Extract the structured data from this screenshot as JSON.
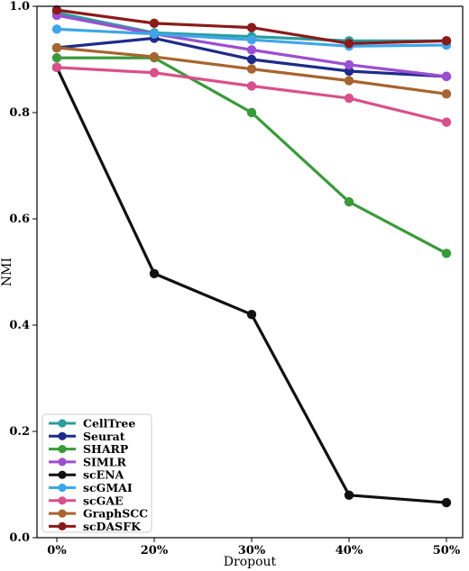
{
  "chart_data": {
    "type": "line",
    "title": "",
    "xlabel": "Dropout",
    "ylabel": "NMI",
    "categories": [
      "0%",
      "20%",
      "30%",
      "40%",
      "50%"
    ],
    "ylim": [
      0.0,
      1.0
    ],
    "yticks": [
      "0.0",
      "0.2",
      "0.4",
      "0.6",
      "0.8",
      "1.0"
    ],
    "grid": false,
    "legend_position": "bottom-left",
    "series": [
      {
        "name": "CellTree",
        "color": "#2a9d9d",
        "values": [
          0.988,
          0.95,
          0.943,
          0.935,
          0.935
        ]
      },
      {
        "name": "Seurat",
        "color": "#1f2a8a",
        "values": [
          0.922,
          0.94,
          0.9,
          0.878,
          0.868
        ]
      },
      {
        "name": "SHARP",
        "color": "#3a9a3a",
        "values": [
          0.903,
          0.903,
          0.8,
          0.632,
          0.535
        ]
      },
      {
        "name": "SIMLR",
        "color": "#9b4fd1",
        "values": [
          0.983,
          0.948,
          0.918,
          0.89,
          0.868
        ]
      },
      {
        "name": "scENA",
        "color": "#111111",
        "values": [
          0.885,
          0.497,
          0.42,
          0.08,
          0.066
        ]
      },
      {
        "name": "scGMAI",
        "color": "#3ea6e8",
        "values": [
          0.957,
          0.948,
          0.937,
          0.925,
          0.927
        ]
      },
      {
        "name": "scGAE",
        "color": "#d9508a",
        "values": [
          0.885,
          0.875,
          0.85,
          0.827,
          0.782
        ]
      },
      {
        "name": "GraphSCC",
        "color": "#a8642e",
        "values": [
          0.922,
          0.905,
          0.882,
          0.86,
          0.835
        ]
      },
      {
        "name": "scDASFK",
        "color": "#8b1a1a",
        "values": [
          0.993,
          0.968,
          0.96,
          0.93,
          0.935
        ]
      }
    ]
  }
}
